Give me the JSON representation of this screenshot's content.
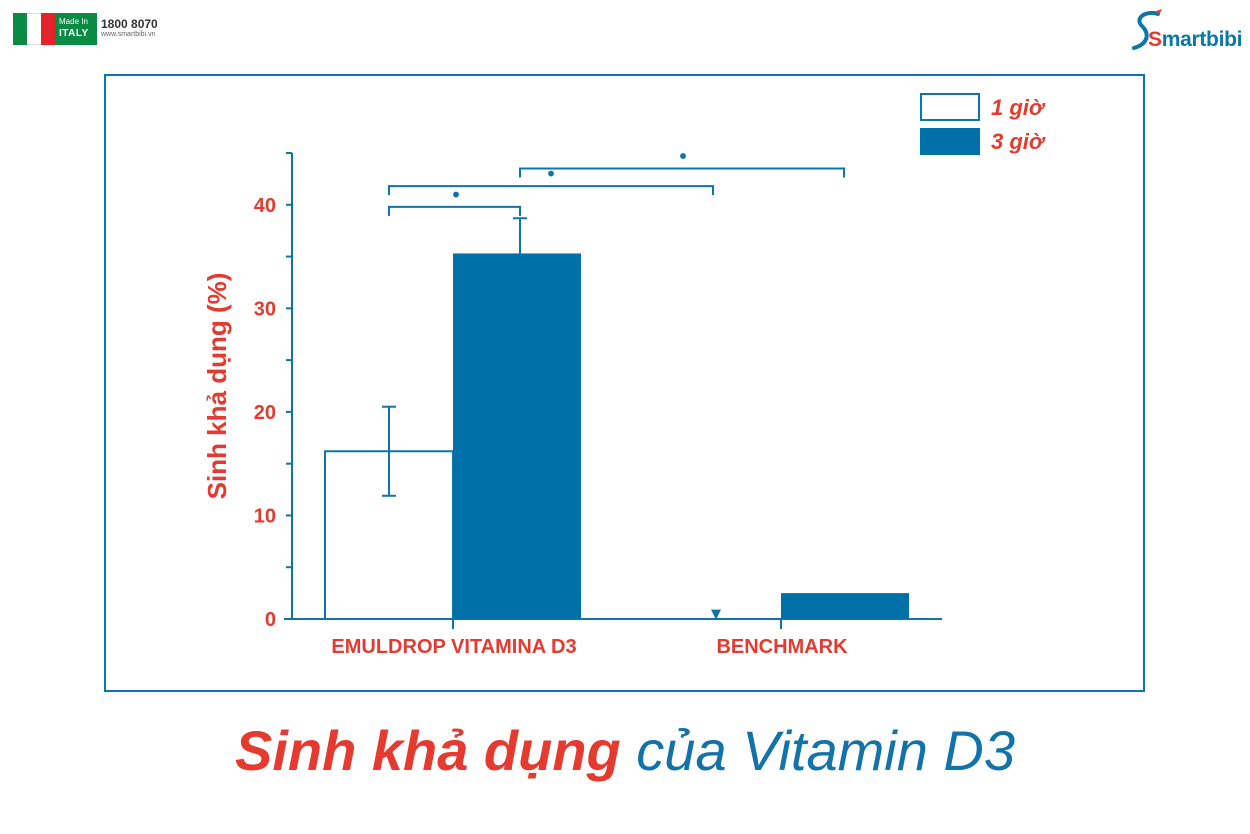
{
  "header": {
    "made_in_line1": "Made In",
    "made_in_line2": "ITALY",
    "hotline": "1800 8070",
    "website": "www.smartbibi.vn",
    "brand_name_first": "S",
    "brand_name_rest": "martbibi"
  },
  "colors": {
    "axis_blue": "#0f74a8",
    "bar_blue": "#0070a8",
    "label_red": "#e53a2f"
  },
  "chart_data": {
    "type": "bar",
    "categories": [
      "EMULDROP VITAMINA D3",
      "BENCHMARK"
    ],
    "series": [
      {
        "name": "1 giờ",
        "values": [
          16.2,
          0
        ],
        "error": [
          4.3,
          null
        ],
        "style": "outline"
      },
      {
        "name": "3 giờ",
        "values": [
          35.3,
          2.5
        ],
        "error": [
          3.4,
          null
        ],
        "style": "filled"
      }
    ],
    "ylabel": "Sinh khả dụng (%)",
    "ylim": [
      0,
      45
    ],
    "yticks": [
      0,
      10,
      20,
      30,
      40
    ],
    "grid": false,
    "legend_position": "top-right",
    "annotations": [
      {
        "type": "significance-bracket",
        "from": "EMULDROP VITAMINA D3 / 1 giờ",
        "to": "EMULDROP VITAMINA D3 / 3 giờ",
        "level": 39.8,
        "symbol": "•"
      },
      {
        "type": "significance-bracket",
        "from": "EMULDROP VITAMINA D3 / 1 giờ",
        "to": "BENCHMARK / 1 giờ",
        "level": 41.8,
        "symbol": "•"
      },
      {
        "type": "significance-bracket",
        "from": "EMULDROP VITAMINA D3 / 3 giờ",
        "to": "BENCHMARK / 3 giờ",
        "level": 43.5,
        "symbol": "•"
      },
      {
        "type": "marker",
        "at": "BENCHMARK / 1 giờ",
        "symbol": "▼"
      }
    ]
  },
  "caption": {
    "bold_part": "Sinh khả dụng",
    "regular_part": " của Vitamin D3"
  }
}
